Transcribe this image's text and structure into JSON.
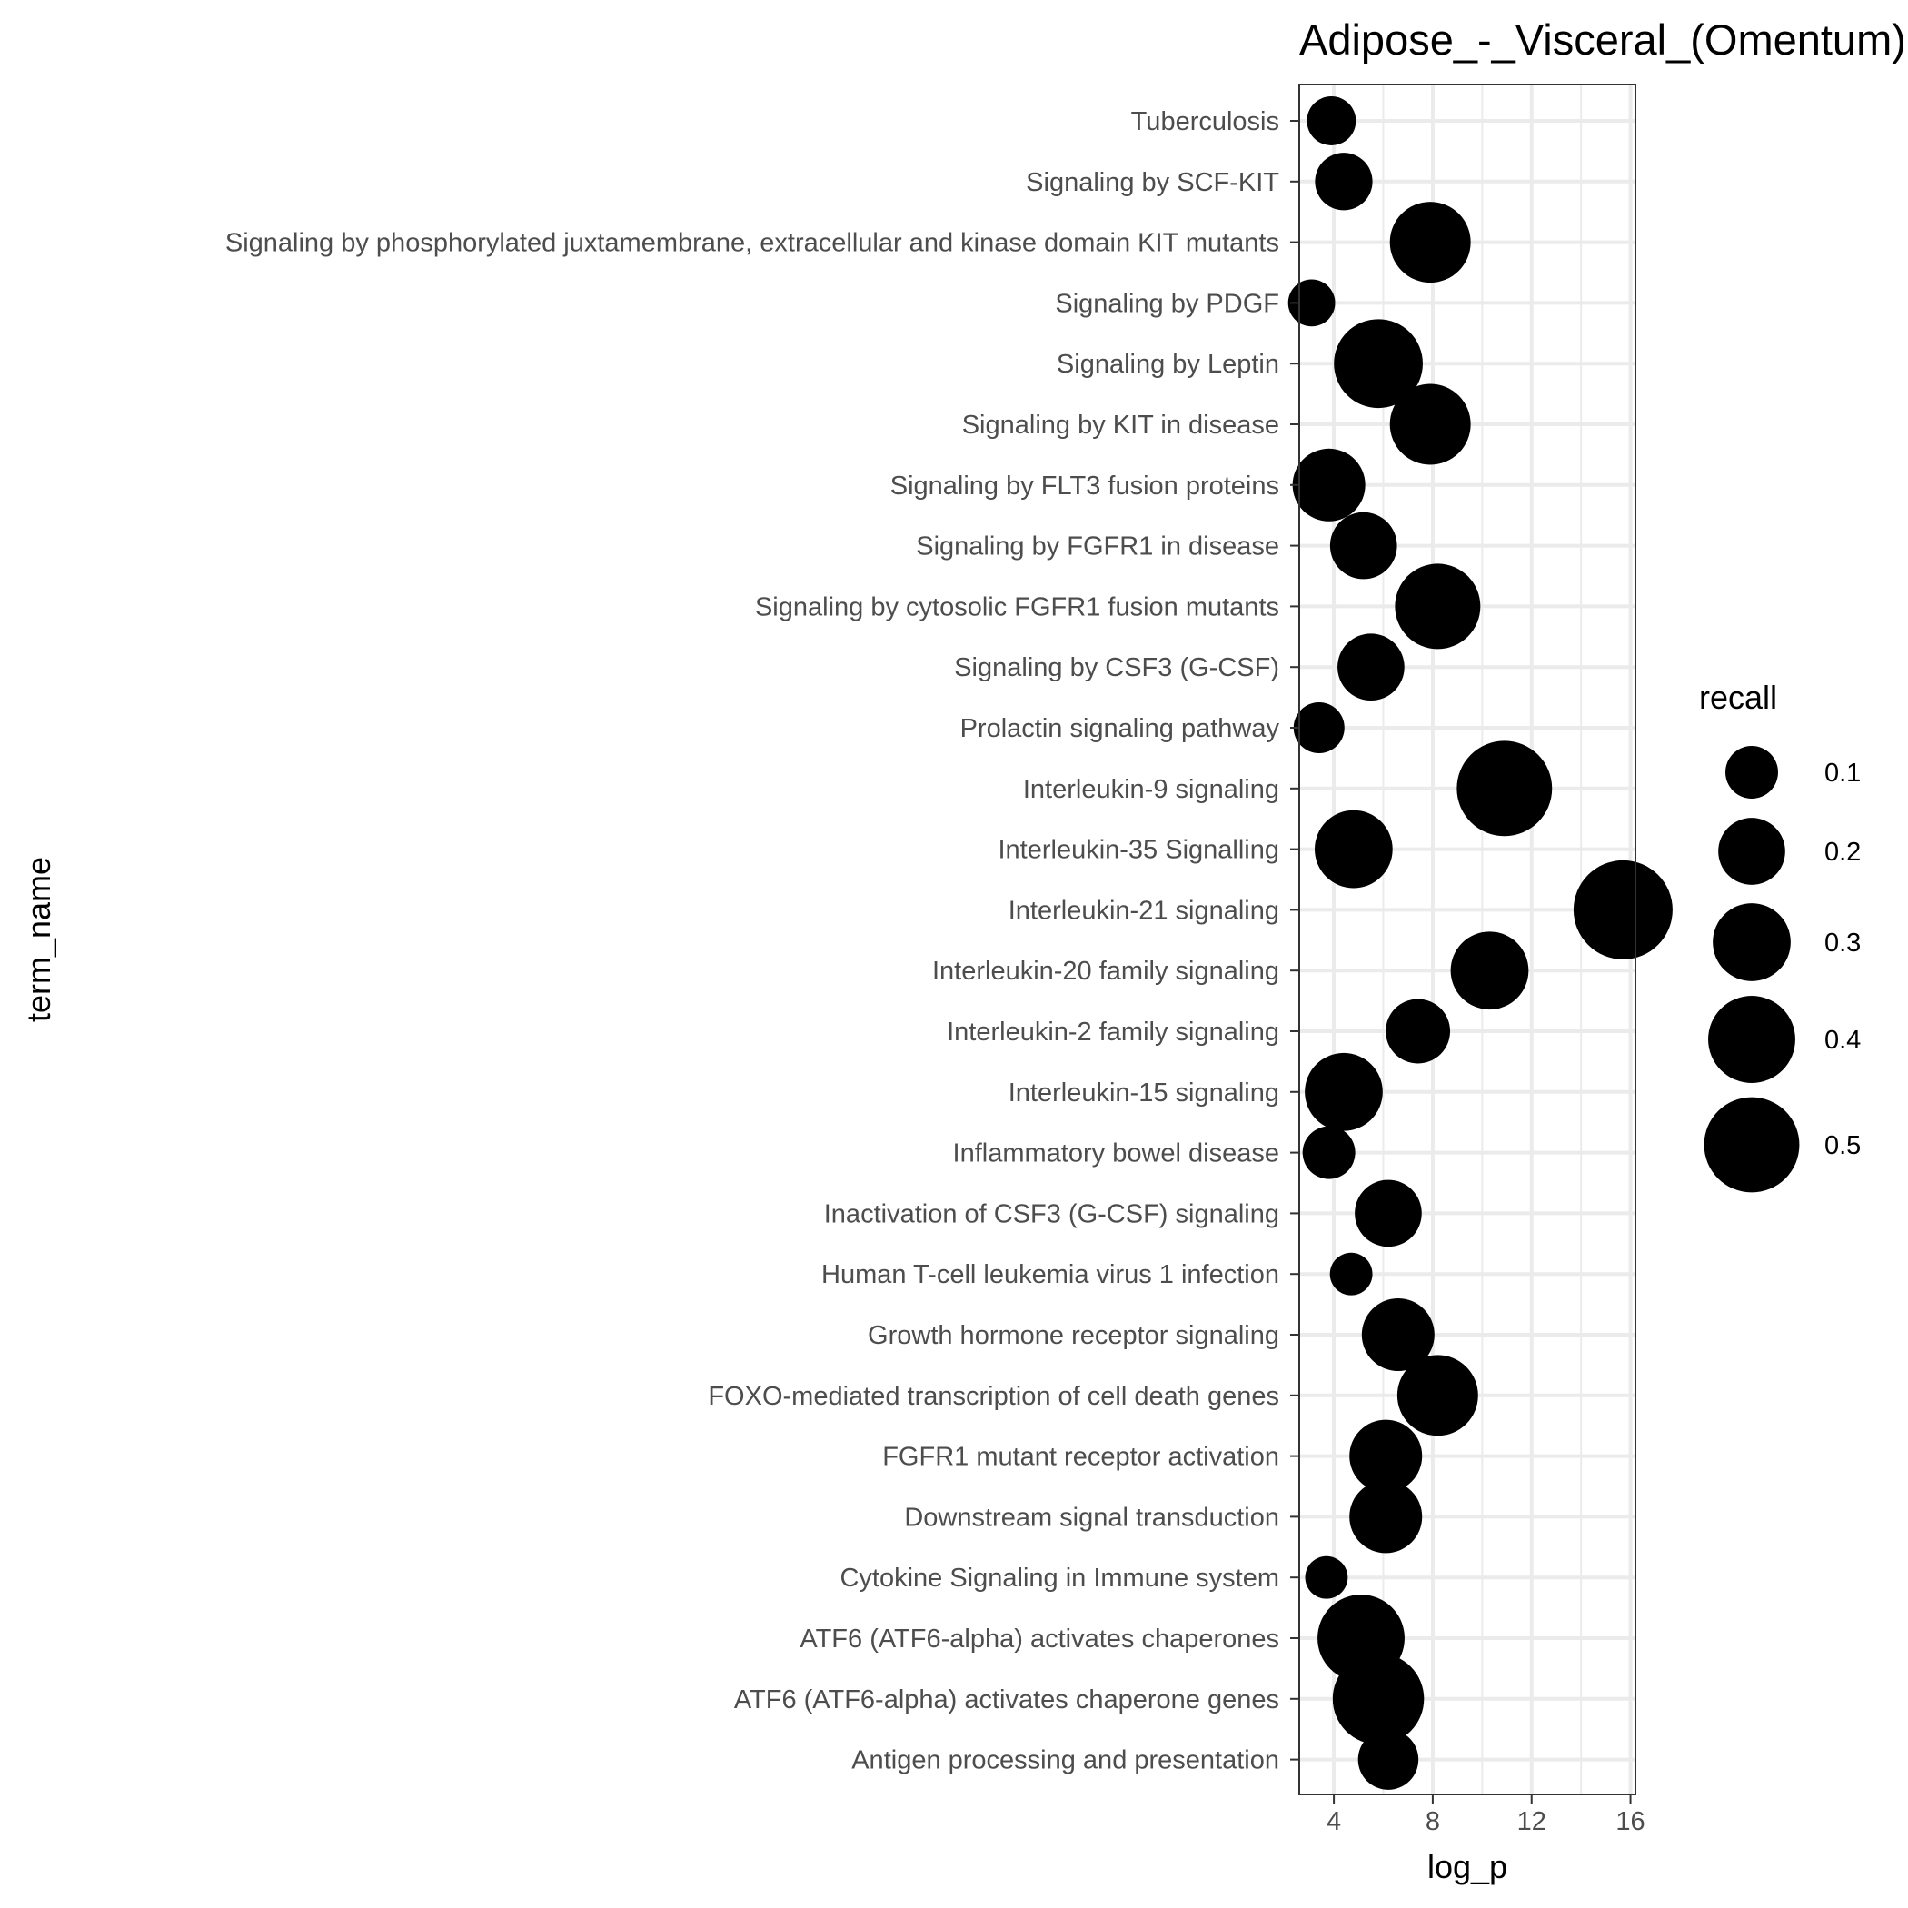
{
  "chart_data": {
    "type": "scatter",
    "title": "Adipose_-_Visceral_(Omentum)",
    "xlabel": "log_p",
    "ylabel": "term_name",
    "xlim": [
      2.6,
      16.2
    ],
    "x_ticks": [
      4,
      8,
      12,
      16
    ],
    "grid": true,
    "point_color": "#000000",
    "legend": {
      "title": "recall",
      "placement": "right",
      "entries": [
        {
          "label": "0.1",
          "size": 0.1
        },
        {
          "label": "0.2",
          "size": 0.2
        },
        {
          "label": "0.3",
          "size": 0.3
        },
        {
          "label": "0.4",
          "size": 0.4
        },
        {
          "label": "0.5",
          "size": 0.5
        }
      ]
    },
    "points": [
      {
        "term": "Tuberculosis",
        "log_p": 3.9,
        "recall": 0.08
      },
      {
        "term": "Signaling by SCF-KIT",
        "log_p": 4.4,
        "recall": 0.13
      },
      {
        "term": "Signaling by phosphorylated juxtamembrane, extracellular and kinase domain KIT mutants",
        "log_p": 7.9,
        "recall": 0.33
      },
      {
        "term": "Signaling by PDGF",
        "log_p": 3.1,
        "recall": 0.07
      },
      {
        "term": "Signaling by Leptin",
        "log_p": 5.8,
        "recall": 0.42
      },
      {
        "term": "Signaling by KIT in disease",
        "log_p": 7.9,
        "recall": 0.33
      },
      {
        "term": "Signaling by FLT3 fusion proteins",
        "log_p": 3.8,
        "recall": 0.25
      },
      {
        "term": "Signaling by FGFR1 in disease",
        "log_p": 5.2,
        "recall": 0.2
      },
      {
        "term": "Signaling by cytosolic FGFR1 fusion mutants",
        "log_p": 8.2,
        "recall": 0.38
      },
      {
        "term": "Signaling by CSF3 (G-CSF)",
        "log_p": 5.5,
        "recall": 0.2
      },
      {
        "term": "Prolactin signaling pathway",
        "log_p": 3.4,
        "recall": 0.09
      },
      {
        "term": "Interleukin-9 signaling",
        "log_p": 10.9,
        "recall": 0.5
      },
      {
        "term": "Interleukin-35 Signalling",
        "log_p": 4.8,
        "recall": 0.3
      },
      {
        "term": "Interleukin-21 signaling",
        "log_p": 15.7,
        "recall": 0.55
      },
      {
        "term": "Interleukin-20 family signaling",
        "log_p": 10.3,
        "recall": 0.3
      },
      {
        "term": "Interleukin-2 family signaling",
        "log_p": 7.4,
        "recall": 0.18
      },
      {
        "term": "Interleukin-15 signaling",
        "log_p": 4.4,
        "recall": 0.3
      },
      {
        "term": "Inflammatory bowel disease",
        "log_p": 3.8,
        "recall": 0.1
      },
      {
        "term": "Inactivation of CSF3 (G-CSF) signaling",
        "log_p": 6.2,
        "recall": 0.2
      },
      {
        "term": "Human T-cell leukemia virus 1 infection",
        "log_p": 4.7,
        "recall": 0.05
      },
      {
        "term": "Growth hormone receptor signaling",
        "log_p": 6.6,
        "recall": 0.25
      },
      {
        "term": "FOXO-mediated transcription of cell death genes",
        "log_p": 8.2,
        "recall": 0.33
      },
      {
        "term": "FGFR1 mutant receptor activation",
        "log_p": 6.1,
        "recall": 0.25
      },
      {
        "term": "Downstream signal transduction",
        "log_p": 6.1,
        "recall": 0.25
      },
      {
        "term": "Cytokine Signaling in Immune system",
        "log_p": 3.7,
        "recall": 0.05
      },
      {
        "term": "ATF6 (ATF6-alpha) activates chaperones",
        "log_p": 5.1,
        "recall": 0.4
      },
      {
        "term": "ATF6 (ATF6-alpha) activates chaperone genes",
        "log_p": 5.8,
        "recall": 0.45
      },
      {
        "term": "Antigen processing and presentation",
        "log_p": 6.2,
        "recall": 0.15
      }
    ]
  }
}
